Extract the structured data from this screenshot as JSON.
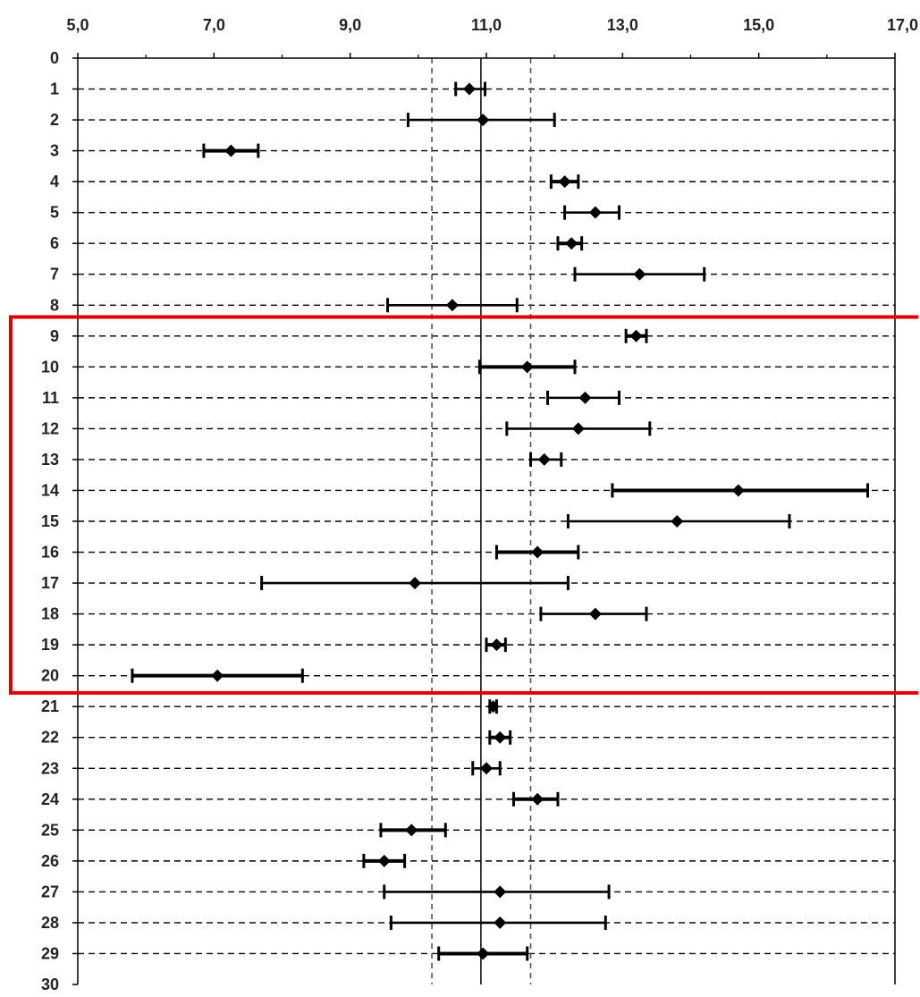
{
  "chart_data": {
    "type": "scatter",
    "title": "",
    "xlabel": "",
    "ylabel": "",
    "xlim": [
      5.0,
      17.0
    ],
    "ylim": [
      0,
      30
    ],
    "y_inverted": true,
    "x_axis_position": "top",
    "x_tick_labels": [
      "5,0",
      "7,0",
      "9,0",
      "11,0",
      "13,0",
      "15,0",
      "17,0"
    ],
    "y_tick_labels": [
      "0",
      "1",
      "2",
      "3",
      "4",
      "5",
      "6",
      "7",
      "8",
      "9",
      "10",
      "11",
      "12",
      "13",
      "14",
      "15",
      "16",
      "17",
      "18",
      "19",
      "20",
      "21",
      "22",
      "23",
      "24",
      "25",
      "26",
      "27",
      "28",
      "29",
      "30"
    ],
    "grid": "horizontal dashed",
    "reference_lines": [
      {
        "x": 10.92,
        "style": "solid"
      },
      {
        "x": 10.2,
        "style": "dashed"
      },
      {
        "x": 11.65,
        "style": "dashed"
      }
    ],
    "highlight_box": {
      "from_row": 9,
      "to_row": 20,
      "color": "#e00000"
    },
    "points": [
      {
        "y": 1,
        "x": 10.75,
        "low": 10.55,
        "high": 10.98,
        "bold": false
      },
      {
        "y": 2,
        "x": 10.95,
        "low": 9.85,
        "high": 12.0,
        "bold": false
      },
      {
        "y": 3,
        "x": 7.25,
        "low": 6.85,
        "high": 7.65,
        "bold": true
      },
      {
        "y": 4,
        "x": 12.15,
        "low": 11.95,
        "high": 12.35,
        "bold": true
      },
      {
        "y": 5,
        "x": 12.6,
        "low": 12.15,
        "high": 12.95,
        "bold": false
      },
      {
        "y": 6,
        "x": 12.25,
        "low": 12.05,
        "high": 12.4,
        "bold": true
      },
      {
        "y": 7,
        "x": 13.25,
        "low": 12.3,
        "high": 14.2,
        "bold": false
      },
      {
        "y": 8,
        "x": 10.5,
        "low": 9.55,
        "high": 11.45,
        "bold": false
      },
      {
        "y": 9,
        "x": 13.2,
        "low": 13.05,
        "high": 13.35,
        "bold": true
      },
      {
        "y": 10,
        "x": 11.6,
        "low": 10.9,
        "high": 12.3,
        "bold": true
      },
      {
        "y": 11,
        "x": 12.45,
        "low": 11.9,
        "high": 12.95,
        "bold": false
      },
      {
        "y": 12,
        "x": 12.35,
        "low": 11.3,
        "high": 13.4,
        "bold": false
      },
      {
        "y": 13,
        "x": 11.85,
        "low": 11.65,
        "high": 12.1,
        "bold": false
      },
      {
        "y": 14,
        "x": 14.7,
        "low": 12.85,
        "high": 16.6,
        "bold": true
      },
      {
        "y": 15,
        "x": 13.8,
        "low": 12.2,
        "high": 15.45,
        "bold": false
      },
      {
        "y": 16,
        "x": 11.75,
        "low": 11.15,
        "high": 12.35,
        "bold": true
      },
      {
        "y": 17,
        "x": 9.95,
        "low": 7.7,
        "high": 12.2,
        "bold": false
      },
      {
        "y": 18,
        "x": 12.6,
        "low": 11.8,
        "high": 13.35,
        "bold": false
      },
      {
        "y": 19,
        "x": 11.15,
        "low": 11.0,
        "high": 11.28,
        "bold": true
      },
      {
        "y": 20,
        "x": 7.05,
        "low": 5.8,
        "high": 8.3,
        "bold": true
      },
      {
        "y": 21,
        "x": 11.1,
        "low": 11.05,
        "high": 11.15,
        "bold": true
      },
      {
        "y": 22,
        "x": 11.2,
        "low": 11.05,
        "high": 11.35,
        "bold": true
      },
      {
        "y": 23,
        "x": 11.0,
        "low": 10.8,
        "high": 11.2,
        "bold": false
      },
      {
        "y": 24,
        "x": 11.75,
        "low": 11.4,
        "high": 12.05,
        "bold": true
      },
      {
        "y": 25,
        "x": 9.9,
        "low": 9.45,
        "high": 10.4,
        "bold": true
      },
      {
        "y": 26,
        "x": 9.5,
        "low": 9.2,
        "high": 9.8,
        "bold": true
      },
      {
        "y": 27,
        "x": 11.2,
        "low": 9.5,
        "high": 12.8,
        "bold": false
      },
      {
        "y": 28,
        "x": 11.2,
        "low": 9.6,
        "high": 12.75,
        "bold": false
      },
      {
        "y": 29,
        "x": 10.95,
        "low": 10.3,
        "high": 11.6,
        "bold": true
      }
    ]
  }
}
